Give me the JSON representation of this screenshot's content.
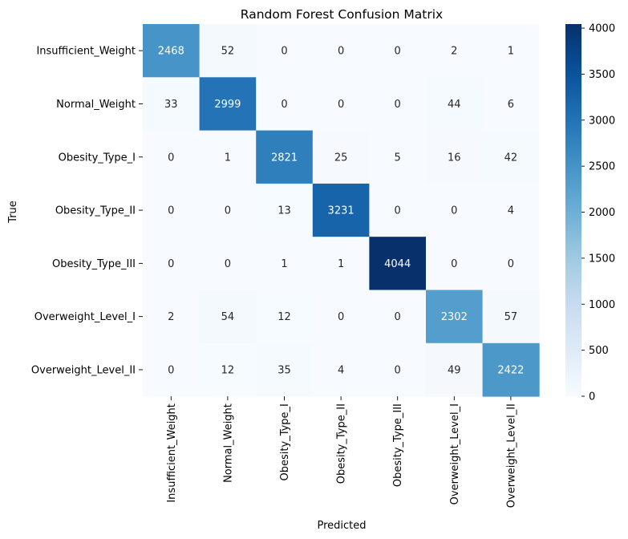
{
  "chart_data": {
    "type": "heatmap",
    "title": "Random Forest Confusion Matrix",
    "xlabel": "Predicted",
    "ylabel": "True",
    "x_categories": [
      "Insufficient_Weight",
      "Normal_Weight",
      "Obesity_Type_I",
      "Obesity_Type_II",
      "Obesity_Type_III",
      "Overweight_Level_I",
      "Overweight_Level_II"
    ],
    "y_categories": [
      "Insufficient_Weight",
      "Normal_Weight",
      "Obesity_Type_I",
      "Obesity_Type_II",
      "Obesity_Type_III",
      "Overweight_Level_I",
      "Overweight_Level_II"
    ],
    "values": [
      [
        2468,
        52,
        0,
        0,
        0,
        2,
        1
      ],
      [
        33,
        2999,
        0,
        0,
        0,
        44,
        6
      ],
      [
        0,
        1,
        2821,
        25,
        5,
        16,
        42
      ],
      [
        0,
        0,
        13,
        3231,
        0,
        0,
        4
      ],
      [
        0,
        0,
        1,
        1,
        4044,
        0,
        0
      ],
      [
        2,
        54,
        12,
        0,
        0,
        2302,
        57
      ],
      [
        0,
        12,
        35,
        4,
        0,
        49,
        2422
      ]
    ],
    "colormap": "Blues",
    "vmin": 0,
    "vmax": 4044,
    "colorbar_ticks": [
      0,
      500,
      1000,
      1500,
      2000,
      2500,
      3000,
      3500,
      4000
    ],
    "colorbar": true,
    "grid": false
  }
}
